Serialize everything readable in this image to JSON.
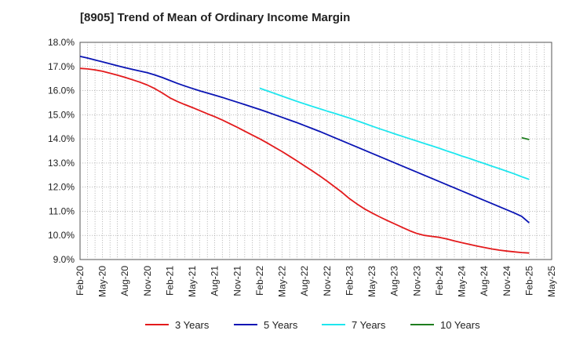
{
  "chart_data": {
    "type": "line",
    "title": "[8905]  Trend of Mean of Ordinary Income Margin",
    "xlabel": "",
    "ylabel": "",
    "x_ticks": [
      "Feb-20",
      "May-20",
      "Aug-20",
      "Nov-20",
      "Feb-21",
      "May-21",
      "Aug-21",
      "Nov-21",
      "Feb-22",
      "May-22",
      "Aug-22",
      "Nov-22",
      "Feb-23",
      "May-23",
      "Aug-23",
      "Nov-23",
      "Feb-24",
      "May-24",
      "Aug-24",
      "Nov-24",
      "Feb-25",
      "May-25"
    ],
    "y_ticks": [
      "9.0%",
      "10.0%",
      "11.0%",
      "12.0%",
      "13.0%",
      "14.0%",
      "15.0%",
      "16.0%",
      "17.0%",
      "18.0%"
    ],
    "ylim": [
      9.0,
      18.0
    ],
    "grid": true,
    "legend_position": "bottom",
    "series": [
      {
        "name": "3 Years",
        "color": "#e31a1c",
        "x": [
          "Feb-20",
          "Mar-20",
          "Apr-20",
          "May-20",
          "Jun-20",
          "Jul-20",
          "Aug-20",
          "Sep-20",
          "Oct-20",
          "Nov-20",
          "Dec-20",
          "Jan-21",
          "Feb-21",
          "Mar-21",
          "Apr-21",
          "May-21",
          "Jun-21",
          "Jul-21",
          "Aug-21",
          "Sep-21",
          "Oct-21",
          "Nov-21",
          "Dec-21",
          "Jan-22",
          "Feb-22",
          "Mar-22",
          "Apr-22",
          "May-22",
          "Jun-22",
          "Jul-22",
          "Aug-22",
          "Sep-22",
          "Oct-22",
          "Nov-22",
          "Dec-22",
          "Jan-23",
          "Feb-23",
          "Mar-23",
          "Apr-23",
          "May-23",
          "Jun-23",
          "Jul-23",
          "Aug-23",
          "Sep-23",
          "Oct-23",
          "Nov-23",
          "Dec-23",
          "Jan-24",
          "Feb-24",
          "Mar-24",
          "Apr-24",
          "May-24",
          "Jun-24",
          "Jul-24",
          "Aug-24",
          "Sep-24",
          "Oct-24",
          "Nov-24",
          "Dec-24",
          "Jan-25",
          "Feb-25"
        ],
        "values": [
          16.92,
          16.9,
          16.86,
          16.8,
          16.72,
          16.64,
          16.55,
          16.45,
          16.35,
          16.23,
          16.08,
          15.9,
          15.7,
          15.55,
          15.42,
          15.3,
          15.17,
          15.04,
          14.92,
          14.78,
          14.63,
          14.48,
          14.32,
          14.16,
          14.0,
          13.83,
          13.65,
          13.47,
          13.28,
          13.08,
          12.88,
          12.68,
          12.47,
          12.25,
          12.02,
          11.78,
          11.52,
          11.3,
          11.1,
          10.93,
          10.77,
          10.62,
          10.48,
          10.34,
          10.2,
          10.08,
          10.0,
          9.96,
          9.92,
          9.85,
          9.77,
          9.7,
          9.63,
          9.56,
          9.5,
          9.44,
          9.39,
          9.35,
          9.32,
          9.29,
          9.27
        ]
      },
      {
        "name": "5 Years",
        "color": "#0a14b4",
        "x": [
          "Feb-20",
          "Mar-20",
          "Apr-20",
          "May-20",
          "Jun-20",
          "Jul-20",
          "Aug-20",
          "Sep-20",
          "Oct-20",
          "Nov-20",
          "Dec-20",
          "Jan-21",
          "Feb-21",
          "Mar-21",
          "Apr-21",
          "May-21",
          "Jun-21",
          "Jul-21",
          "Aug-21",
          "Sep-21",
          "Oct-21",
          "Nov-21",
          "Dec-21",
          "Jan-22",
          "Feb-22",
          "Mar-22",
          "Apr-22",
          "May-22",
          "Jun-22",
          "Jul-22",
          "Aug-22",
          "Sep-22",
          "Oct-22",
          "Nov-22",
          "Dec-22",
          "Jan-23",
          "Feb-23",
          "Mar-23",
          "Apr-23",
          "May-23",
          "Jun-23",
          "Jul-23",
          "Aug-23",
          "Sep-23",
          "Oct-23",
          "Nov-23",
          "Dec-23",
          "Jan-24",
          "Feb-24",
          "Mar-24",
          "Apr-24",
          "May-24",
          "Jun-24",
          "Jul-24",
          "Aug-24",
          "Sep-24",
          "Oct-24",
          "Nov-24",
          "Dec-24",
          "Jan-25",
          "Feb-25"
        ],
        "values": [
          17.42,
          17.35,
          17.27,
          17.19,
          17.11,
          17.03,
          16.95,
          16.88,
          16.81,
          16.74,
          16.65,
          16.54,
          16.42,
          16.3,
          16.19,
          16.09,
          15.99,
          15.9,
          15.81,
          15.72,
          15.62,
          15.52,
          15.42,
          15.32,
          15.22,
          15.11,
          15.0,
          14.89,
          14.78,
          14.67,
          14.55,
          14.43,
          14.31,
          14.18,
          14.05,
          13.92,
          13.79,
          13.66,
          13.53,
          13.4,
          13.27,
          13.14,
          13.01,
          12.88,
          12.75,
          12.62,
          12.49,
          12.36,
          12.23,
          12.1,
          11.97,
          11.84,
          11.71,
          11.58,
          11.45,
          11.32,
          11.19,
          11.06,
          10.93,
          10.79,
          10.52
        ]
      },
      {
        "name": "7 Years",
        "color": "#1ee6ee",
        "x": [
          "Feb-22",
          "Mar-22",
          "Apr-22",
          "May-22",
          "Jun-22",
          "Jul-22",
          "Aug-22",
          "Sep-22",
          "Oct-22",
          "Nov-22",
          "Dec-22",
          "Jan-23",
          "Feb-23",
          "Mar-23",
          "Apr-23",
          "May-23",
          "Jun-23",
          "Jul-23",
          "Aug-23",
          "Sep-23",
          "Oct-23",
          "Nov-23",
          "Dec-23",
          "Jan-24",
          "Feb-24",
          "Mar-24",
          "Apr-24",
          "May-24",
          "Jun-24",
          "Jul-24",
          "Aug-24",
          "Sep-24",
          "Oct-24",
          "Nov-24",
          "Dec-24",
          "Jan-25",
          "Feb-25"
        ],
        "values": [
          16.1,
          15.99,
          15.88,
          15.77,
          15.66,
          15.55,
          15.45,
          15.35,
          15.25,
          15.15,
          15.06,
          14.96,
          14.86,
          14.75,
          14.64,
          14.53,
          14.42,
          14.32,
          14.21,
          14.11,
          14.01,
          13.91,
          13.81,
          13.71,
          13.61,
          13.5,
          13.4,
          13.29,
          13.19,
          13.08,
          12.98,
          12.87,
          12.77,
          12.66,
          12.55,
          12.43,
          12.32
        ]
      },
      {
        "name": "10 Years",
        "color": "#1e7d1e",
        "x": [
          "Jan-25",
          "Feb-25"
        ],
        "values": [
          14.05,
          13.97
        ]
      }
    ]
  }
}
